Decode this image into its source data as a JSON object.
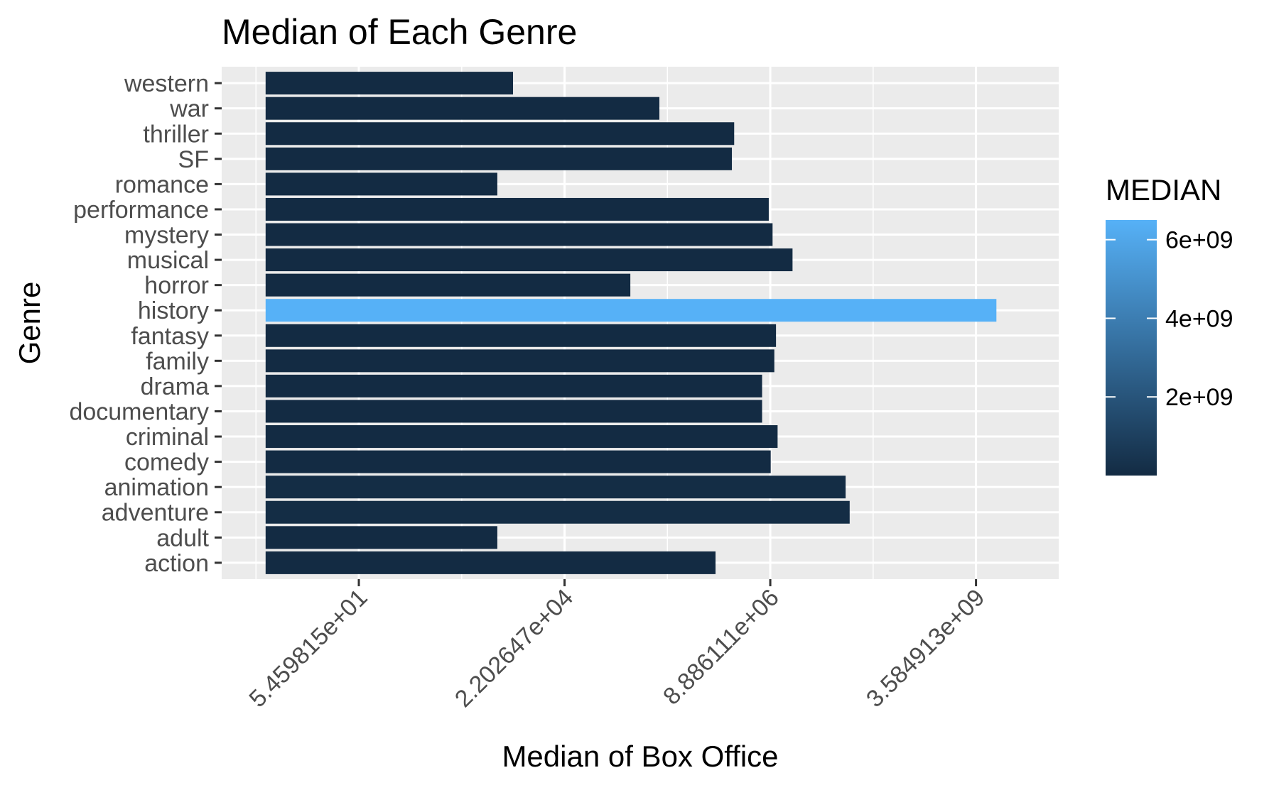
{
  "chart_data": {
    "type": "bar",
    "orientation": "horizontal",
    "title": "Median of Each Genre",
    "xlabel": "Median of Box Office",
    "ylabel": "Genre",
    "x_scale": "log",
    "xlim": [
      1,
      40000000000
    ],
    "x_ticks": [
      54.59815,
      22026.47,
      8886111,
      3584913000
    ],
    "x_tick_labels": [
      "5.459815e+01",
      "2.202647e+04",
      "8.886111e+06",
      "3.584913e+09"
    ],
    "categories": [
      "action",
      "adult",
      "adventure",
      "animation",
      "comedy",
      "criminal",
      "documentary",
      "drama",
      "family",
      "fantasy",
      "history",
      "horror",
      "musical",
      "mystery",
      "performance",
      "romance",
      "SF",
      "thriller",
      "war",
      "western"
    ],
    "values": [
      1800000,
      3100,
      90000000,
      80000000,
      9000000,
      11000000,
      7000000,
      7000000,
      10000000,
      10500000,
      6500000000,
      150000,
      17000000,
      9500000,
      8500000,
      3100,
      2900000,
      3100000,
      350000,
      4900
    ],
    "legend": {
      "title": "MEDIAN",
      "type": "gradient",
      "low_color": "#132B43",
      "high_color": "#56B1F7",
      "range": [
        0,
        6500000000
      ],
      "breaks": [
        2000000000,
        4000000000,
        6000000000
      ],
      "break_labels": [
        "2e+09",
        "4e+09",
        "6e+09"
      ],
      "placement": "right"
    },
    "grid": true,
    "panel_background": "#EBEBEB",
    "grid_color": "#FFFFFF"
  }
}
